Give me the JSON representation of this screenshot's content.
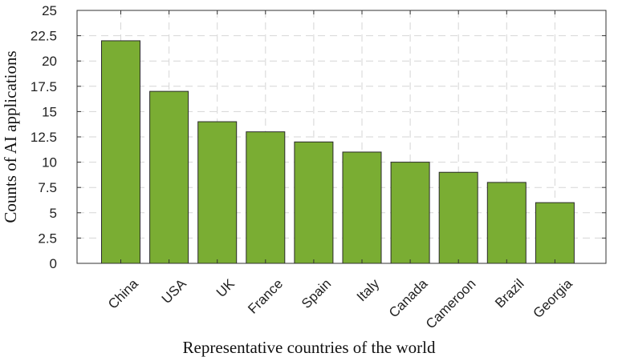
{
  "chart_data": {
    "type": "bar",
    "categories": [
      "China",
      "USA",
      "UK",
      "France",
      "Spain",
      "Italy",
      "Canada",
      "Cameroon",
      "Brazil",
      "Georgia"
    ],
    "values": [
      22,
      17,
      14,
      13,
      12,
      11,
      10,
      9,
      8,
      6
    ],
    "xlabel": "Representative countries of the world",
    "ylabel": "Counts of AI applications",
    "ylim": [
      0,
      25
    ],
    "yticks": [
      "0",
      "2.5",
      "5",
      "7.5",
      "10",
      "12.5",
      "15",
      "17.5",
      "20",
      "22.5",
      "25"
    ],
    "grid": true,
    "bar_color": "#7aad33",
    "edge_color": "#2a2a2a"
  }
}
